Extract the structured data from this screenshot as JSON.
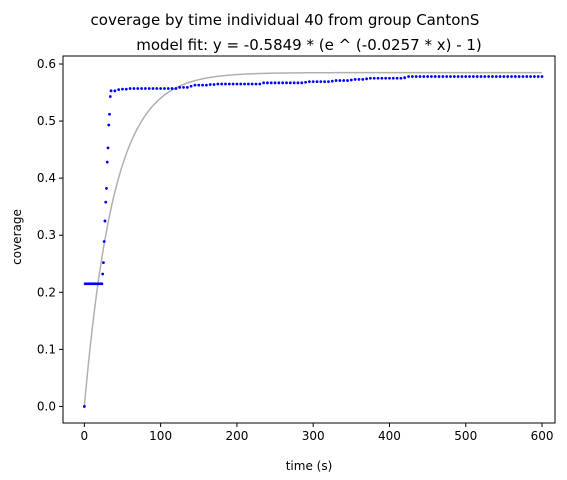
{
  "chart_data": {
    "type": "scatter",
    "title": "coverage by time individual 40 from group CantonS",
    "subtitle": "model fit: y = -0.5849 * (e ^ (-0.0257 * x) - 1)",
    "xlabel": "time (s)",
    "ylabel": "coverage",
    "xlim": [
      -28,
      617
    ],
    "ylim": [
      -0.029,
      0.614
    ],
    "x_ticks": [
      0,
      100,
      200,
      300,
      400,
      500,
      600
    ],
    "y_ticks": [
      0.0,
      0.1,
      0.2,
      0.3,
      0.4,
      0.5,
      0.6
    ],
    "grid": false,
    "model": {
      "a": 0.5849,
      "b": 0.0257,
      "x_range": [
        0,
        600
      ],
      "color": "#b0b0b0"
    },
    "series": [
      {
        "color": "#0000ff",
        "points": [
          [
            0,
            0.0
          ],
          [
            1,
            0.215
          ],
          [
            3,
            0.215
          ],
          [
            5,
            0.215
          ],
          [
            7,
            0.215
          ],
          [
            9,
            0.215
          ],
          [
            11,
            0.215
          ],
          [
            13,
            0.215
          ],
          [
            15,
            0.215
          ],
          [
            17,
            0.215
          ],
          [
            19,
            0.215
          ],
          [
            21,
            0.215
          ],
          [
            23,
            0.215
          ],
          [
            24,
            0.232
          ],
          [
            25,
            0.252
          ],
          [
            26,
            0.289
          ],
          [
            27,
            0.325
          ],
          [
            28,
            0.358
          ],
          [
            29,
            0.382
          ],
          [
            30,
            0.428
          ],
          [
            31,
            0.453
          ],
          [
            32,
            0.493
          ],
          [
            33,
            0.512
          ],
          [
            34,
            0.543
          ],
          [
            35,
            0.553
          ],
          [
            40,
            0.553
          ],
          [
            45,
            0.555
          ],
          [
            50,
            0.556
          ],
          [
            55,
            0.556
          ],
          [
            60,
            0.557
          ],
          [
            65,
            0.557
          ],
          [
            70,
            0.557
          ],
          [
            75,
            0.557
          ],
          [
            80,
            0.557
          ],
          [
            85,
            0.557
          ],
          [
            90,
            0.557
          ],
          [
            95,
            0.557
          ],
          [
            100,
            0.557
          ],
          [
            105,
            0.557
          ],
          [
            110,
            0.557
          ],
          [
            115,
            0.557
          ],
          [
            120,
            0.557
          ],
          [
            125,
            0.559
          ],
          [
            130,
            0.559
          ],
          [
            135,
            0.559
          ],
          [
            140,
            0.561
          ],
          [
            145,
            0.563
          ],
          [
            150,
            0.563
          ],
          [
            155,
            0.563
          ],
          [
            160,
            0.563
          ],
          [
            165,
            0.564
          ],
          [
            170,
            0.564
          ],
          [
            175,
            0.565
          ],
          [
            180,
            0.565
          ],
          [
            185,
            0.565
          ],
          [
            190,
            0.565
          ],
          [
            195,
            0.565
          ],
          [
            200,
            0.565
          ],
          [
            205,
            0.565
          ],
          [
            210,
            0.565
          ],
          [
            215,
            0.565
          ],
          [
            220,
            0.565
          ],
          [
            225,
            0.565
          ],
          [
            230,
            0.565
          ],
          [
            235,
            0.567
          ],
          [
            240,
            0.567
          ],
          [
            245,
            0.567
          ],
          [
            250,
            0.567
          ],
          [
            255,
            0.567
          ],
          [
            260,
            0.567
          ],
          [
            265,
            0.567
          ],
          [
            270,
            0.567
          ],
          [
            275,
            0.567
          ],
          [
            280,
            0.567
          ],
          [
            285,
            0.567
          ],
          [
            290,
            0.568
          ],
          [
            295,
            0.569
          ],
          [
            300,
            0.569
          ],
          [
            305,
            0.569
          ],
          [
            310,
            0.569
          ],
          [
            315,
            0.569
          ],
          [
            320,
            0.569
          ],
          [
            325,
            0.57
          ],
          [
            330,
            0.571
          ],
          [
            335,
            0.571
          ],
          [
            340,
            0.571
          ],
          [
            345,
            0.571
          ],
          [
            350,
            0.572
          ],
          [
            355,
            0.573
          ],
          [
            360,
            0.573
          ],
          [
            365,
            0.573
          ],
          [
            370,
            0.574
          ],
          [
            375,
            0.575
          ],
          [
            380,
            0.575
          ],
          [
            385,
            0.575
          ],
          [
            390,
            0.575
          ],
          [
            395,
            0.575
          ],
          [
            400,
            0.575
          ],
          [
            405,
            0.575
          ],
          [
            410,
            0.575
          ],
          [
            415,
            0.575
          ],
          [
            420,
            0.576
          ],
          [
            425,
            0.578
          ],
          [
            430,
            0.578
          ],
          [
            435,
            0.578
          ],
          [
            440,
            0.578
          ],
          [
            445,
            0.578
          ],
          [
            450,
            0.578
          ],
          [
            455,
            0.578
          ],
          [
            460,
            0.578
          ],
          [
            465,
            0.578
          ],
          [
            470,
            0.578
          ],
          [
            475,
            0.578
          ],
          [
            480,
            0.578
          ],
          [
            485,
            0.578
          ],
          [
            490,
            0.578
          ],
          [
            495,
            0.578
          ],
          [
            500,
            0.578
          ],
          [
            505,
            0.578
          ],
          [
            510,
            0.578
          ],
          [
            515,
            0.578
          ],
          [
            520,
            0.578
          ],
          [
            525,
            0.578
          ],
          [
            530,
            0.578
          ],
          [
            535,
            0.578
          ],
          [
            540,
            0.578
          ],
          [
            545,
            0.578
          ],
          [
            550,
            0.578
          ],
          [
            555,
            0.578
          ],
          [
            560,
            0.578
          ],
          [
            565,
            0.578
          ],
          [
            570,
            0.578
          ],
          [
            575,
            0.578
          ],
          [
            580,
            0.578
          ],
          [
            585,
            0.578
          ],
          [
            590,
            0.578
          ],
          [
            595,
            0.578
          ],
          [
            600,
            0.578
          ]
        ]
      }
    ]
  }
}
